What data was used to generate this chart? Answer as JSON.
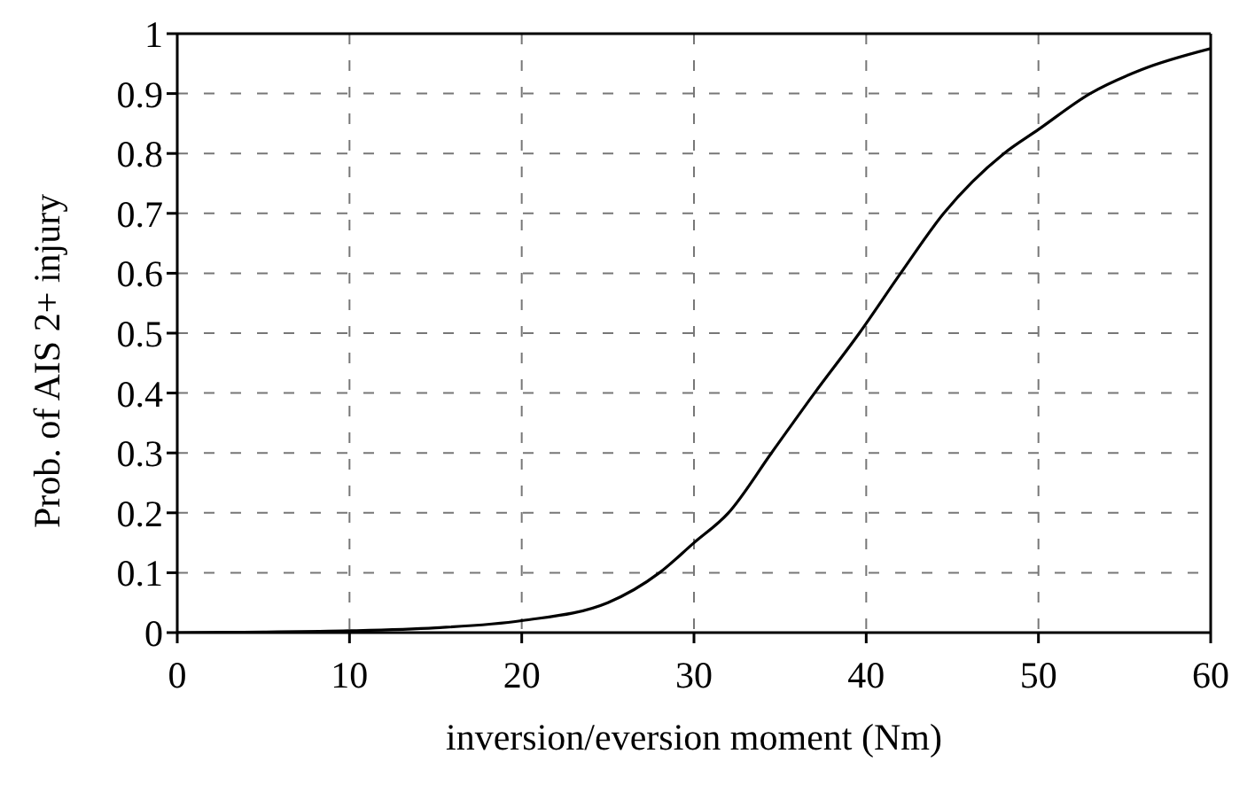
{
  "chart_data": {
    "type": "line",
    "xlabel": "inversion/eversion moment (Nm)",
    "ylabel": "Prob. of AIS 2+ injury",
    "x": [
      0,
      5,
      10,
      15,
      20,
      25,
      28,
      30,
      32,
      34.5,
      37,
      39.6,
      42,
      44.5,
      48,
      50,
      53,
      56,
      60
    ],
    "series": [
      {
        "color": "#000000",
        "values": [
          0,
          0.001,
          0.003,
          0.008,
          0.02,
          0.05,
          0.1,
          0.15,
          0.2,
          0.3,
          0.4,
          0.5,
          0.6,
          0.7,
          0.8,
          0.84,
          0.9,
          0.94,
          0.975
        ]
      }
    ],
    "xlim": [
      0,
      60
    ],
    "xticks": [
      0,
      10,
      20,
      30,
      40,
      50,
      60
    ],
    "ylim": [
      0,
      1
    ],
    "yticks": [
      0,
      0.1,
      0.2,
      0.3,
      0.4,
      0.5,
      0.6,
      0.7,
      0.8,
      0.9,
      1
    ],
    "grid": true,
    "marker": "none",
    "line_style": "solid",
    "legend": false
  }
}
